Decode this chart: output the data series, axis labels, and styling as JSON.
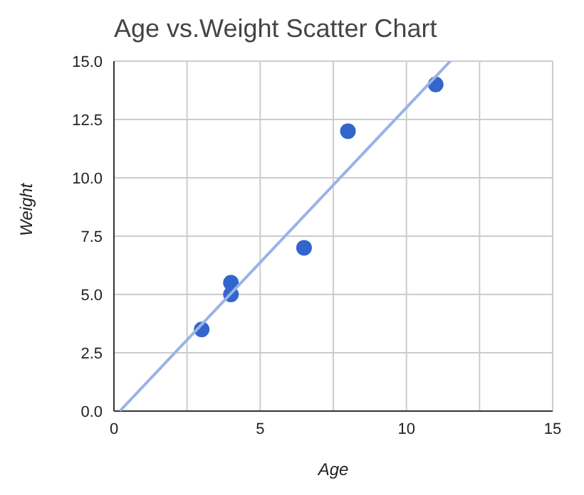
{
  "chart_data": {
    "type": "scatter",
    "title": "Age vs.Weight Scatter Chart",
    "xlabel": "Age",
    "ylabel": "Weight",
    "x": [
      3,
      4,
      4,
      6.5,
      8,
      11
    ],
    "series": [
      {
        "color": "#3366cc",
        "values": [
          3.5,
          5,
          5.5,
          7,
          12,
          14
        ]
      },
      {
        "type": "line",
        "color": "#99b3e6",
        "x": [
          0.2,
          11.5
        ],
        "values": [
          0,
          15
        ],
        "marker": "none"
      }
    ],
    "xlim": [
      0,
      15
    ],
    "xticks": [
      0,
      {
        "value": 2.5,
        "label": null
      },
      5,
      {
        "value": 7.5,
        "label": null
      },
      10,
      {
        "value": 12.5,
        "label": null
      },
      15
    ],
    "ylim": [
      0,
      15
    ],
    "yticks": [
      {
        "value": 0,
        "label": "0.0"
      },
      {
        "value": 2.5,
        "label": "2.5"
      },
      {
        "value": 5,
        "label": "5.0"
      },
      {
        "value": 7.5,
        "label": "7.5"
      },
      {
        "value": 10,
        "label": "10.0"
      },
      {
        "value": 12.5,
        "label": "12.5"
      },
      {
        "value": 15,
        "label": "15.0"
      }
    ],
    "grid": true,
    "marker": "circle"
  }
}
